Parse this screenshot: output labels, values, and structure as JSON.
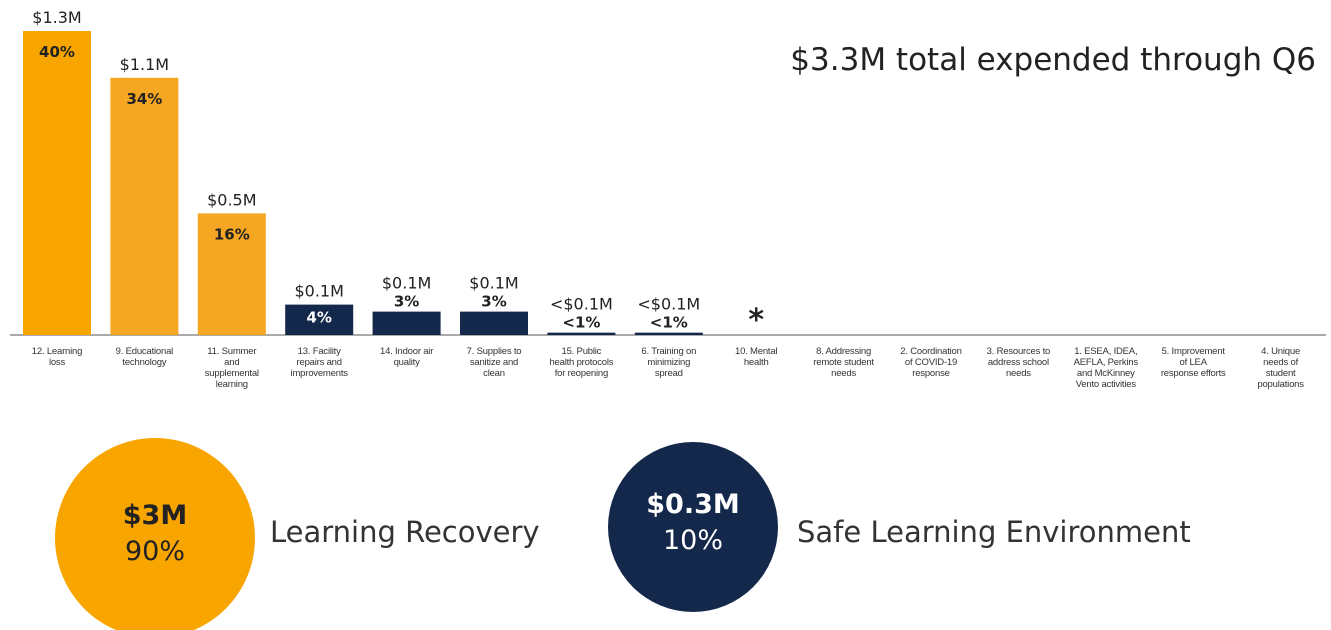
{
  "chart_data": {
    "type": "bar",
    "title": "$3.3M total expended through Q6",
    "categories": [
      "12. Learning loss",
      "9. Educational technology",
      "11. Summer and supplemental learning",
      "13. Facility repairs and improvements",
      "14. Indoor air quality",
      "7. Supplies to sanitize and clean",
      "15. Public health protocols for reopening",
      "6. Training on minimizing spread",
      "10. Mental health",
      "8. Addressing remote student needs",
      "2. Coordination of COVID-19 response",
      "3. Resources to address school needs",
      "1. ESEA, IDEA, AEFLA, Perkins and McKinney Vento activities",
      "5. Improvement of LEA response efforts",
      "4. Unique needs of student populations"
    ],
    "values": [
      1.3,
      1.1,
      0.52,
      0.13,
      0.1,
      0.1,
      0.01,
      0.01,
      null,
      null,
      null,
      null,
      null,
      null,
      null
    ],
    "value_labels": [
      "$1.3M",
      "$1.1M",
      "$0.5M",
      "$0.1M",
      "$0.1M",
      "$0.1M",
      "<$0.1M",
      "<$0.1M",
      "*",
      null,
      null,
      null,
      null,
      null,
      null
    ],
    "percent_labels": [
      "40%",
      "34%",
      "16%",
      "4%",
      "3%",
      "3%",
      "<1%",
      "<1%",
      null,
      null,
      null,
      null,
      null,
      null,
      null
    ],
    "colors": [
      "#f9a500",
      "#f5a623",
      "#f5a623",
      "#13284b",
      "#13284b",
      "#13284b",
      "#13284b",
      "#13284b",
      null,
      null,
      null,
      null,
      null,
      null,
      null
    ],
    "summary": [
      {
        "amount": "$3M",
        "percent": "90%",
        "label": "Learning Recovery",
        "color": "#f9a500"
      },
      {
        "amount": "$0.3M",
        "percent": "10%",
        "label": "Safe Learning Environment",
        "color": "#13284b"
      }
    ]
  }
}
